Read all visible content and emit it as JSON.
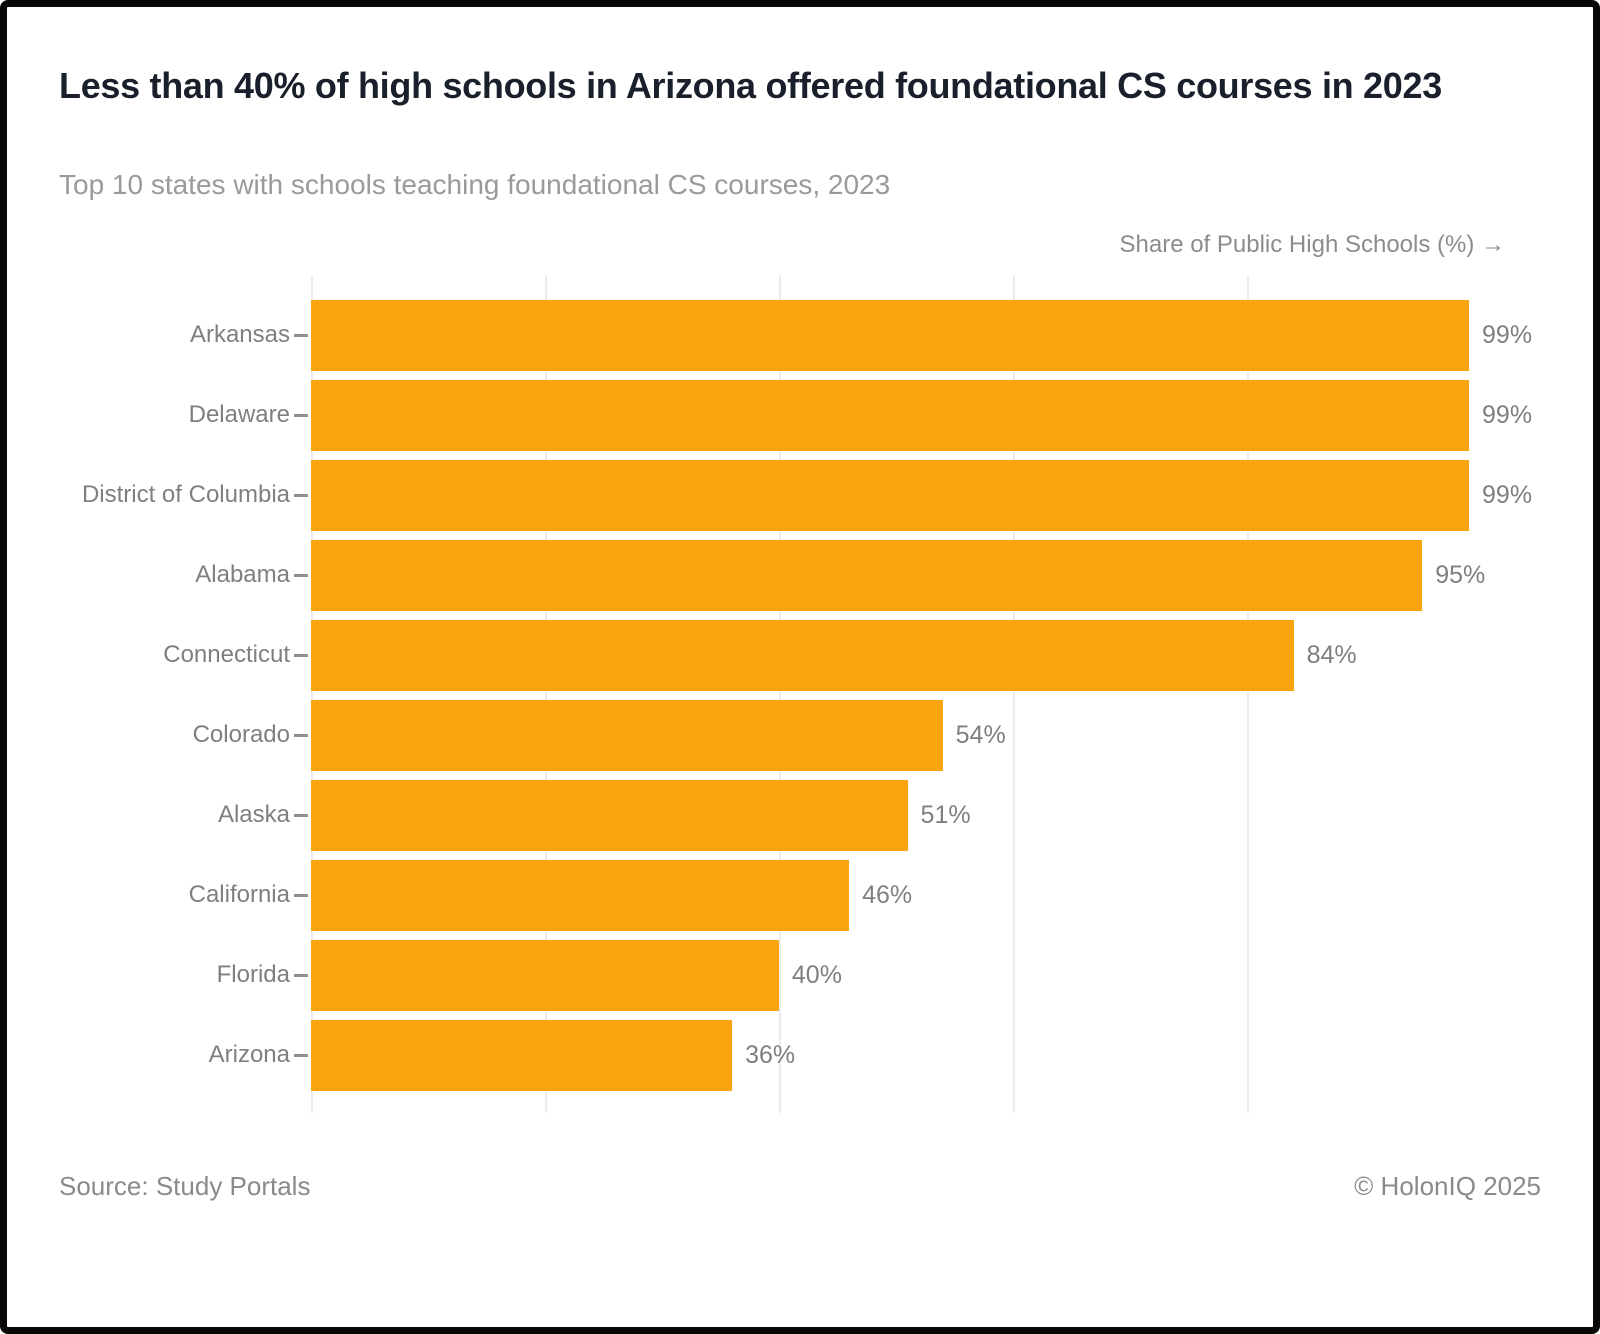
{
  "header": {
    "title": "Less than 40% of high schools in Arizona offered foundational CS courses in 2023",
    "subtitle": "Top 10 states with schools teaching foundational CS courses, 2023"
  },
  "chart_data": {
    "type": "bar",
    "orientation": "horizontal",
    "title": "Less than 40% of high schools in Arizona offered foundational CS courses in 2023",
    "subtitle": "Top 10 states with schools teaching foundational CS courses, 2023",
    "xlabel": "Share of Public High Schools (%) →",
    "ylabel": "",
    "categories": [
      "Arkansas",
      "Delaware",
      "District of Columbia",
      "Alabama",
      "Connecticut",
      "Colorado",
      "Alaska",
      "California",
      "Florida",
      "Arizona"
    ],
    "values": [
      99,
      99,
      99,
      95,
      84,
      54,
      51,
      46,
      40,
      36
    ],
    "value_labels": [
      "99%",
      "99%",
      "99%",
      "95%",
      "84%",
      "54%",
      "51%",
      "46%",
      "40%",
      "36%"
    ],
    "xlim": [
      0,
      100
    ],
    "gridlines_at": [
      0,
      20,
      40,
      60,
      80
    ],
    "grid": "vertical-light",
    "legend": "none",
    "bar_color": "#FAA40F",
    "gridline_color": "#ececec",
    "label_color": "#7f7f7f"
  },
  "footer": {
    "source": "Source: Study Portals",
    "copyright": "© HolonIQ 2025"
  }
}
